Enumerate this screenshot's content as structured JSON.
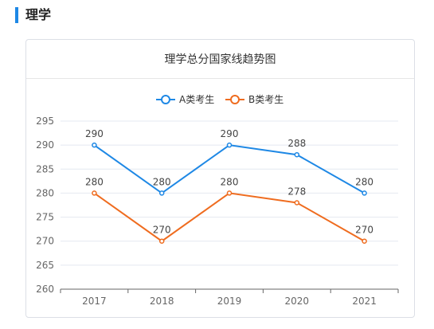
{
  "section": {
    "title": "理学"
  },
  "chart_data": {
    "type": "line",
    "title": "理学总分国家线趋势图",
    "categories": [
      "2017",
      "2018",
      "2019",
      "2020",
      "2021"
    ],
    "series": [
      {
        "name": "A类考生",
        "values": [
          290,
          280,
          290,
          288,
          280
        ],
        "color": "#1E88E5"
      },
      {
        "name": "B类考生",
        "values": [
          280,
          270,
          280,
          278,
          270
        ],
        "color": "#EF6C1F"
      }
    ],
    "ylim": [
      260,
      295
    ],
    "yticks": [
      260,
      265,
      270,
      275,
      280,
      285,
      290,
      295
    ],
    "grid": true,
    "legend": "top-center",
    "data_labels": true
  }
}
